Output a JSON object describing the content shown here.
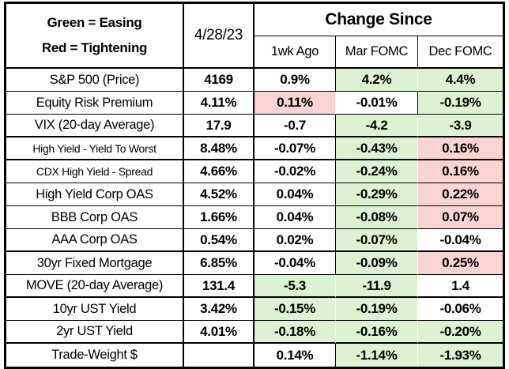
{
  "chart_data": {
    "type": "table",
    "title": "Change Since",
    "legend": {
      "line1": "Green = Easing",
      "line2": "Red = Tightening"
    },
    "as_of_date": "4/28/23",
    "change_columns": [
      "1wk Ago",
      "Mar FOMC",
      "Dec FOMC"
    ],
    "fill_colors": {
      "green_easing": "#dcf2d3",
      "red_tightening": "#f9d4d1",
      "grid": "#000000"
    },
    "rows": [
      {
        "label": "S&P 500 (Price)",
        "value": "4169",
        "wk": "0.9%",
        "wk_fill": "none",
        "mar": "4.2%",
        "mar_fill": "green",
        "dec": "4.4%",
        "dec_fill": "green"
      },
      {
        "label": "Equity Risk Premium",
        "value": "4.11%",
        "wk": "0.11%",
        "wk_fill": "red",
        "mar": "-0.01%",
        "mar_fill": "none",
        "dec": "-0.19%",
        "dec_fill": "green"
      },
      {
        "label": "VIX (20-day Average)",
        "value": "17.9",
        "wk": "-0.7",
        "wk_fill": "none",
        "mar": "-4.2",
        "mar_fill": "green",
        "dec": "-3.9",
        "dec_fill": "green"
      },
      {
        "label": "High Yield - Yield To Worst",
        "value": "8.48%",
        "wk": "-0.07%",
        "wk_fill": "none",
        "mar": "-0.43%",
        "mar_fill": "green",
        "dec": "0.16%",
        "dec_fill": "red"
      },
      {
        "label": "CDX High Yield - Spread",
        "value": "4.66%",
        "wk": "-0.02%",
        "wk_fill": "none",
        "mar": "-0.24%",
        "mar_fill": "green",
        "dec": "0.16%",
        "dec_fill": "red"
      },
      {
        "label": "High Yield Corp OAS",
        "value": "4.52%",
        "wk": "0.04%",
        "wk_fill": "none",
        "mar": "-0.29%",
        "mar_fill": "green",
        "dec": "0.22%",
        "dec_fill": "red"
      },
      {
        "label": "BBB Corp OAS",
        "value": "1.66%",
        "wk": "0.04%",
        "wk_fill": "none",
        "mar": "-0.08%",
        "mar_fill": "green",
        "dec": "0.07%",
        "dec_fill": "red"
      },
      {
        "label": "AAA Corp OAS",
        "value": "0.54%",
        "wk": "0.02%",
        "wk_fill": "none",
        "mar": "-0.07%",
        "mar_fill": "green",
        "dec": "-0.04%",
        "dec_fill": "none"
      },
      {
        "label": "30yr Fixed Mortgage",
        "value": "6.85%",
        "wk": "-0.04%",
        "wk_fill": "none",
        "mar": "-0.09%",
        "mar_fill": "green",
        "dec": "0.25%",
        "dec_fill": "red"
      },
      {
        "label": "MOVE (20-day Average)",
        "value": "131.4",
        "wk": "-5.3",
        "wk_fill": "green",
        "mar": "-11.9",
        "mar_fill": "green",
        "dec": "1.4",
        "dec_fill": "none"
      },
      {
        "label": "10yr UST Yield",
        "value": "3.42%",
        "wk": "-0.15%",
        "wk_fill": "green",
        "mar": "-0.19%",
        "mar_fill": "green",
        "dec": "-0.06%",
        "dec_fill": "none"
      },
      {
        "label": "2yr UST Yield",
        "value": "4.01%",
        "wk": "-0.18%",
        "wk_fill": "green",
        "mar": "-0.16%",
        "mar_fill": "green",
        "dec": "-0.20%",
        "dec_fill": "green"
      },
      {
        "label": "Trade-Weight $",
        "value": "",
        "wk": "0.14%",
        "wk_fill": "none",
        "mar": "-1.14%",
        "mar_fill": "green",
        "dec": "-1.93%",
        "dec_fill": "green"
      }
    ]
  }
}
